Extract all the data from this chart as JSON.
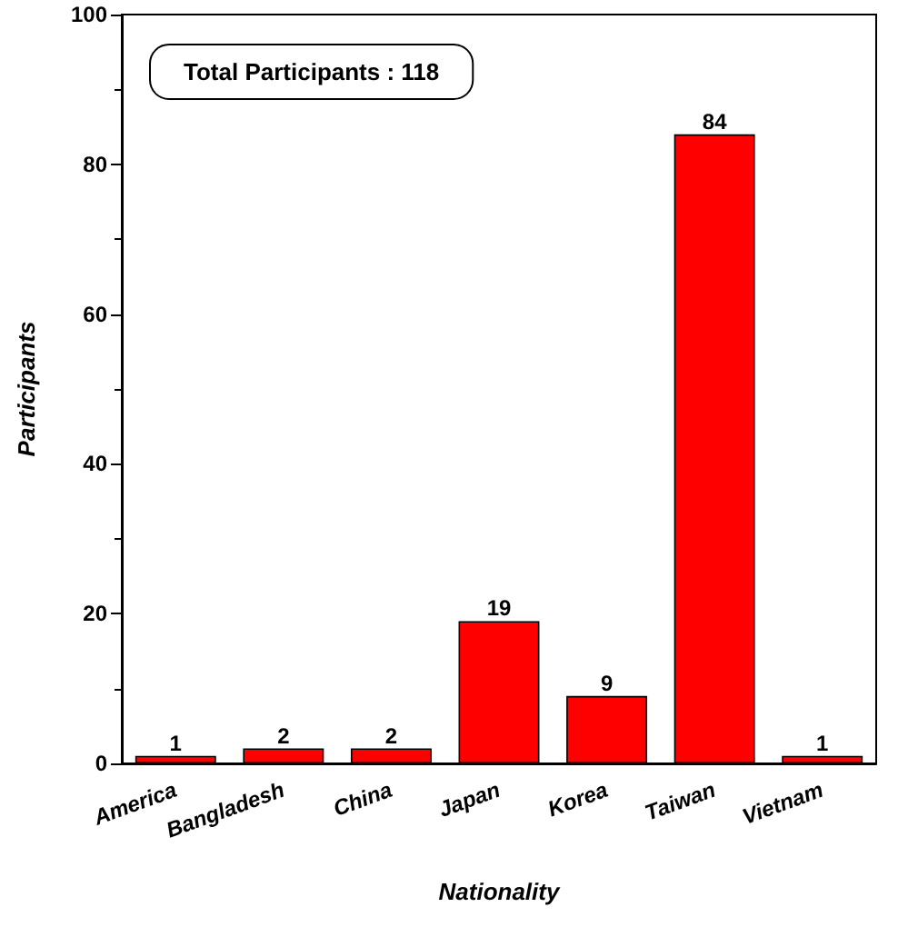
{
  "chart_data": {
    "type": "bar",
    "xlabel": "Nationality",
    "ylabel": "Participants",
    "categories": [
      "America",
      "Bangladesh",
      "China",
      "Japan",
      "Korea",
      "Taiwan",
      "Vietnam"
    ],
    "values": [
      1,
      2,
      2,
      19,
      9,
      84,
      1
    ],
    "color": "#ff0000",
    "ylim": [
      0,
      100
    ],
    "yticks": [
      0,
      20,
      40,
      60,
      80,
      100
    ],
    "data_labels": true,
    "grid": false,
    "annotations": [
      "Total Participants : 118"
    ]
  }
}
